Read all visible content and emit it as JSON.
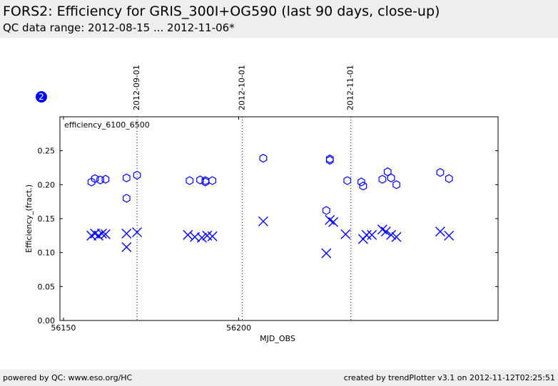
{
  "header": {
    "title": "FORS2: Efficiency for GRIS_300I+OG590 (last 90 days, close-up)",
    "subtitle": "QC data range: 2012-08-15 ... 2012-11-06*"
  },
  "badge": {
    "label": "2"
  },
  "footer": {
    "left": "powered by QC: www.eso.org/HC",
    "right": "created by trendPlotter v3.1 on 2012-11-12T02:25:51"
  },
  "colors": {
    "series": "#0000ff",
    "header_bg": "#eeeeee"
  },
  "chart_data": {
    "type": "scatter",
    "panel_label": "efficiency_6100_6500",
    "xlabel": "MJD_OBS",
    "ylabel": "Efficiency_(fract.)",
    "xlim": [
      56149,
      56274
    ],
    "ylim": [
      0.0,
      0.3
    ],
    "x_ticks": [
      56150,
      56200
    ],
    "y_ticks": [
      0.0,
      0.05,
      0.1,
      0.15,
      0.2,
      0.25
    ],
    "y_tick_labels": [
      "0.00",
      "0.05",
      "0.10",
      "0.15",
      "0.20",
      "0.25"
    ],
    "date_markers": [
      {
        "x": 56171.0,
        "label": "2012-09-01"
      },
      {
        "x": 56201.0,
        "label": "2012-10-01"
      },
      {
        "x": 56232.0,
        "label": "2012-11-01"
      }
    ],
    "series": [
      {
        "marker": "hexagon",
        "x": [
          56158.0,
          56159.0,
          56160.5,
          56162.0,
          56168.0,
          56168.0,
          56171.0,
          56186.0,
          56189.0,
          56190.5,
          56190.5,
          56192.5,
          56207.0,
          56225.0,
          56226.0,
          56226.0,
          56231.0,
          56235.0,
          56235.5,
          56241.0,
          56242.5,
          56243.5,
          56245.0,
          56257.5,
          56260.0
        ],
        "y": [
          0.204,
          0.209,
          0.207,
          0.208,
          0.21,
          0.18,
          0.214,
          0.206,
          0.207,
          0.204,
          0.206,
          0.206,
          0.239,
          0.162,
          0.236,
          0.238,
          0.206,
          0.204,
          0.198,
          0.208,
          0.219,
          0.21,
          0.2,
          0.218,
          0.209
        ]
      },
      {
        "marker": "x",
        "x": [
          56158.0,
          56159.0,
          56160.0,
          56161.0,
          56162.0,
          56168.0,
          56168.0,
          56171.0,
          56185.5,
          56187.5,
          56189.5,
          56191.0,
          56192.5,
          56207.0,
          56225.0,
          56226.0,
          56227.0,
          56230.5,
          56235.5,
          56236.5,
          56238.0,
          56241.0,
          56242.0,
          56243.5,
          56245.0,
          56257.5,
          56260.0
        ],
        "y": [
          0.125,
          0.128,
          0.125,
          0.128,
          0.127,
          0.108,
          0.128,
          0.13,
          0.126,
          0.123,
          0.122,
          0.125,
          0.124,
          0.146,
          0.099,
          0.148,
          0.145,
          0.127,
          0.12,
          0.126,
          0.126,
          0.134,
          0.131,
          0.126,
          0.123,
          0.131,
          0.125
        ]
      }
    ]
  }
}
